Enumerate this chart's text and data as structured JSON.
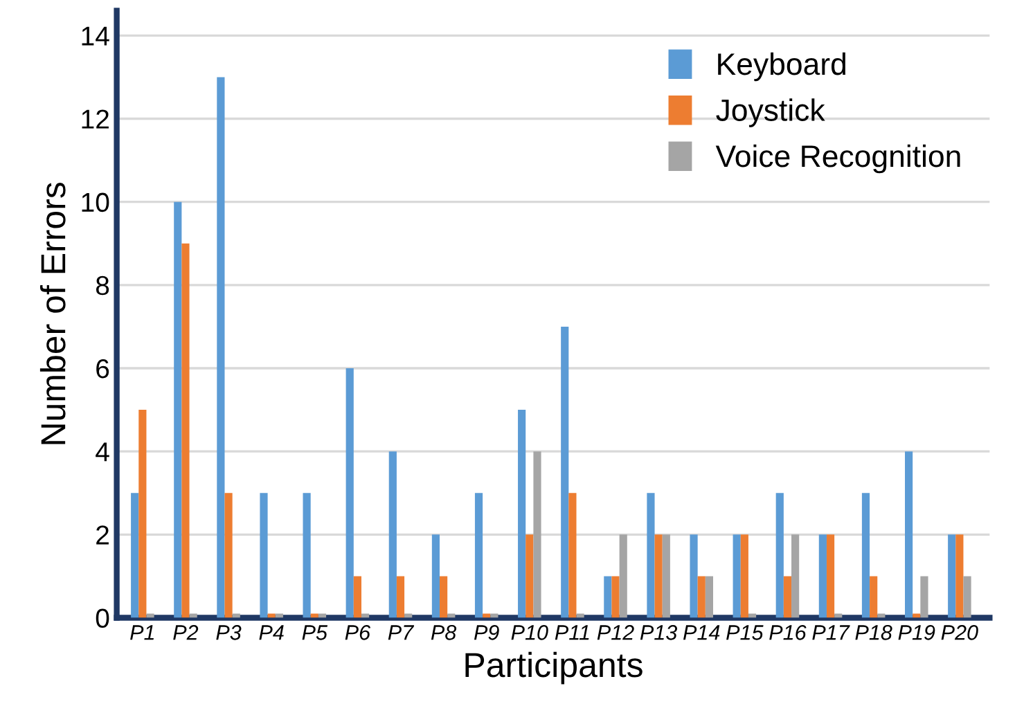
{
  "chart_data": {
    "type": "bar",
    "xlabel": "Participants",
    "ylabel": "Number of Errors",
    "categories": [
      "P1",
      "P2",
      "P3",
      "P4",
      "P5",
      "P6",
      "P7",
      "P8",
      "P9",
      "P10",
      "P11",
      "P12",
      "P13",
      "P14",
      "P15",
      "P16",
      "P17",
      "P18",
      "P19",
      "P20"
    ],
    "series": [
      {
        "name": "Keyboard",
        "color": "#5b9bd5",
        "values": [
          3,
          10,
          13,
          3,
          3,
          6,
          4,
          2,
          3,
          5,
          7,
          1,
          3,
          2,
          2,
          3,
          2,
          3,
          4,
          2
        ]
      },
      {
        "name": "Joystick",
        "color": "#ed7d31",
        "values": [
          5,
          9,
          3,
          0.1,
          0.1,
          1,
          1,
          1,
          0.1,
          2,
          3,
          1,
          2,
          1,
          2,
          1,
          2,
          1,
          0.1,
          2
        ]
      },
      {
        "name": "Voice Recognition",
        "color": "#a5a5a5",
        "values": [
          0.1,
          0.1,
          0.1,
          0.1,
          0.1,
          0.1,
          0.1,
          0.1,
          0.1,
          4,
          0.1,
          2,
          2,
          1,
          0.1,
          2,
          0.1,
          0.1,
          1,
          1
        ]
      }
    ],
    "ylim": [
      0,
      14.6
    ],
    "yticks": [
      0,
      2,
      4,
      6,
      8,
      10,
      12,
      14
    ],
    "grid": "y",
    "legend": "top right"
  }
}
